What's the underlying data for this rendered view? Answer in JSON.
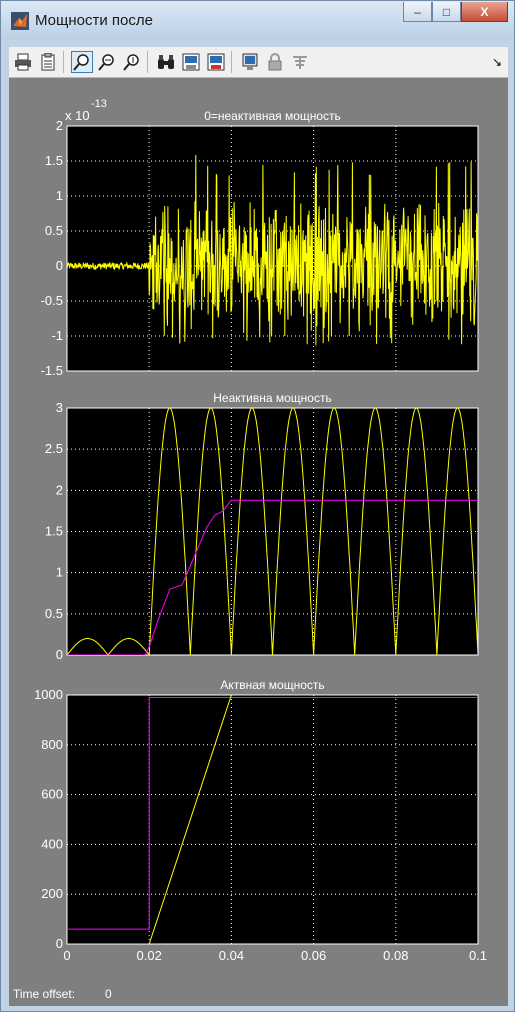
{
  "window": {
    "title": "Мощности после",
    "minimize_label": "‒",
    "maximize_label": "□",
    "close_label": "X"
  },
  "toolbar": {
    "items": [
      "print-icon",
      "params-icon",
      "zoom-icon",
      "zoom-x-icon",
      "zoom-y-icon",
      "binoculars-icon",
      "save-axes-icon",
      "restore-axes-icon",
      "floating-scope-icon",
      "lock-icon",
      "signal-select-icon"
    ],
    "overflow": "↘"
  },
  "status": {
    "time_offset_label": "Time offset:",
    "time_offset_value": "0"
  },
  "chart_data": [
    {
      "type": "line",
      "title": "0=неактивная мощность",
      "exponent_label": "x 10",
      "exponent_power": "-13",
      "xlim": [
        0,
        0.1
      ],
      "ylim": [
        -1.5,
        2
      ],
      "yticks": [
        -1.5,
        -1,
        -0.5,
        0,
        0.5,
        1,
        1.5,
        2
      ],
      "xticks": [
        0,
        0.02,
        0.04,
        0.06,
        0.08,
        0.1
      ],
      "grid": true,
      "series": [
        {
          "color": "#ffff00",
          "description": "noise ~±0.05 before 0.02, ~±1.0 after 0.02",
          "pre_amplitude": 0.05,
          "post_amplitude": 1.0,
          "step_time": 0.02,
          "peak": 1.6,
          "trough": -1.15
        }
      ]
    },
    {
      "type": "line",
      "title": "Неактивна мощность",
      "xlim": [
        0,
        0.1
      ],
      "ylim": [
        0,
        3
      ],
      "yticks": [
        0,
        0.5,
        1,
        1.5,
        2,
        2.5,
        3
      ],
      "xticks": [
        0,
        0.02,
        0.04,
        0.06,
        0.08,
        0.1
      ],
      "grid": true,
      "series": [
        {
          "color": "#ffff00",
          "pre_amplitude": 0.2,
          "post_amplitude": 3.0,
          "frequency": 100,
          "step_time": 0.02
        },
        {
          "color": "#ff00ff",
          "x": [
            0,
            0.019,
            0.02,
            0.022,
            0.025,
            0.028,
            0.031,
            0.034,
            0.036,
            0.038,
            0.039,
            0.04,
            0.1
          ],
          "y": [
            0,
            0,
            0.1,
            0.4,
            0.8,
            0.85,
            1.2,
            1.55,
            1.7,
            1.75,
            1.82,
            1.88,
            1.88
          ]
        }
      ]
    },
    {
      "type": "line",
      "title": "Актвная мощность",
      "xlim": [
        0,
        0.1
      ],
      "ylim": [
        0,
        1000
      ],
      "yticks": [
        0,
        200,
        400,
        600,
        800,
        1000
      ],
      "xticks": [
        0,
        0.02,
        0.04,
        0.06,
        0.08,
        0.1
      ],
      "xtick_labels": [
        "0",
        "0.02",
        "0.04",
        "0.06",
        "0.08",
        "0.1"
      ],
      "grid": true,
      "series": [
        {
          "color": "#ff00ff",
          "x": [
            0,
            0.02,
            0.02,
            0.1
          ],
          "y": [
            60,
            60,
            990,
            990
          ]
        },
        {
          "color": "#ffff00",
          "x": [
            0,
            0.02,
            0.04,
            0.1
          ],
          "y": [
            0,
            0,
            1000,
            1000
          ]
        }
      ]
    }
  ]
}
